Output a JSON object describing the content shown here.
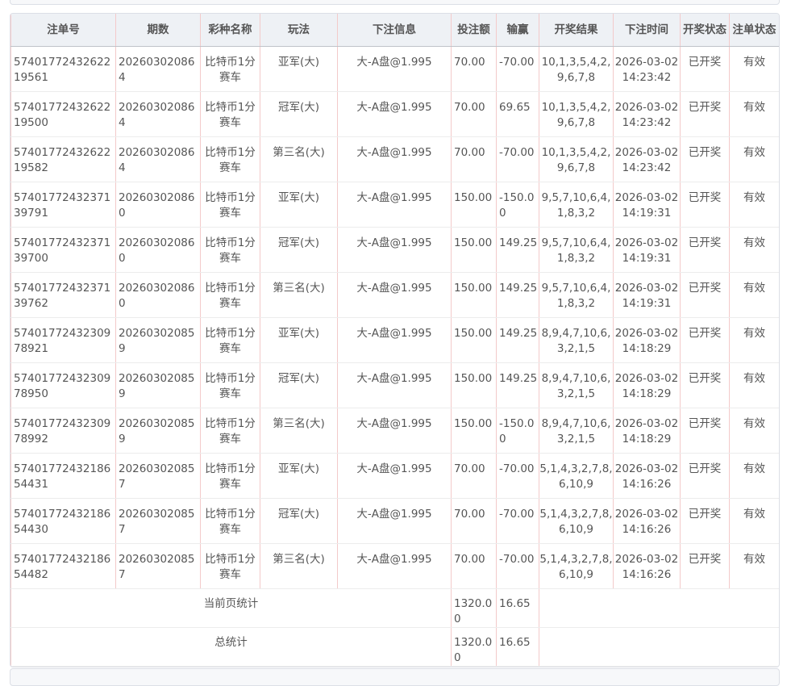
{
  "columns": [
    "注单号",
    "期数",
    "彩种名称",
    "玩法",
    "下注信息",
    "投注额",
    "输赢",
    "开奖结果",
    "下注时间",
    "开奖状态",
    "注单状态"
  ],
  "rows": [
    [
      "5740177243262219561",
      "202603020864",
      "比特币1分赛车",
      "亚军(大)",
      "大-A盘@1.995",
      "70.00",
      "-70.00",
      "10,1,3,5,4,2,9,6,7,8",
      "2026-03-02 14:23:42",
      "已开奖",
      "有效"
    ],
    [
      "5740177243262219500",
      "202603020864",
      "比特币1分赛车",
      "冠军(大)",
      "大-A盘@1.995",
      "70.00",
      "69.65",
      "10,1,3,5,4,2,9,6,7,8",
      "2026-03-02 14:23:42",
      "已开奖",
      "有效"
    ],
    [
      "5740177243262219582",
      "202603020864",
      "比特币1分赛车",
      "第三名(大)",
      "大-A盘@1.995",
      "70.00",
      "-70.00",
      "10,1,3,5,4,2,9,6,7,8",
      "2026-03-02 14:23:42",
      "已开奖",
      "有效"
    ],
    [
      "5740177243237139791",
      "202603020860",
      "比特币1分赛车",
      "亚军(大)",
      "大-A盘@1.995",
      "150.00",
      "-150.00",
      "9,5,7,10,6,4,1,8,3,2",
      "2026-03-02 14:19:31",
      "已开奖",
      "有效"
    ],
    [
      "5740177243237139700",
      "202603020860",
      "比特币1分赛车",
      "冠军(大)",
      "大-A盘@1.995",
      "150.00",
      "149.25",
      "9,5,7,10,6,4,1,8,3,2",
      "2026-03-02 14:19:31",
      "已开奖",
      "有效"
    ],
    [
      "5740177243237139762",
      "202603020860",
      "比特币1分赛车",
      "第三名(大)",
      "大-A盘@1.995",
      "150.00",
      "149.25",
      "9,5,7,10,6,4,1,8,3,2",
      "2026-03-02 14:19:31",
      "已开奖",
      "有效"
    ],
    [
      "5740177243230978921",
      "202603020859",
      "比特币1分赛车",
      "亚军(大)",
      "大-A盘@1.995",
      "150.00",
      "149.25",
      "8,9,4,7,10,6,3,2,1,5",
      "2026-03-02 14:18:29",
      "已开奖",
      "有效"
    ],
    [
      "5740177243230978950",
      "202603020859",
      "比特币1分赛车",
      "冠军(大)",
      "大-A盘@1.995",
      "150.00",
      "149.25",
      "8,9,4,7,10,6,3,2,1,5",
      "2026-03-02 14:18:29",
      "已开奖",
      "有效"
    ],
    [
      "5740177243230978992",
      "202603020859",
      "比特币1分赛车",
      "第三名(大)",
      "大-A盘@1.995",
      "150.00",
      "-150.00",
      "8,9,4,7,10,6,3,2,1,5",
      "2026-03-02 14:18:29",
      "已开奖",
      "有效"
    ],
    [
      "5740177243218654431",
      "202603020857",
      "比特币1分赛车",
      "亚军(大)",
      "大-A盘@1.995",
      "70.00",
      "-70.00",
      "5,1,4,3,2,7,8,6,10,9",
      "2026-03-02 14:16:26",
      "已开奖",
      "有效"
    ],
    [
      "5740177243218654430",
      "202603020857",
      "比特币1分赛车",
      "冠军(大)",
      "大-A盘@1.995",
      "70.00",
      "-70.00",
      "5,1,4,3,2,7,8,6,10,9",
      "2026-03-02 14:16:26",
      "已开奖",
      "有效"
    ],
    [
      "5740177243218654482",
      "202603020857",
      "比特币1分赛车",
      "第三名(大)",
      "大-A盘@1.995",
      "70.00",
      "-70.00",
      "5,1,4,3,2,7,8,6,10,9",
      "2026-03-02 14:16:26",
      "已开奖",
      "有效"
    ]
  ],
  "summary": [
    {
      "label": "当前页统计",
      "amount": "1320.00",
      "winloss": "16.65"
    },
    {
      "label": "总统计",
      "amount": "1320.00",
      "winloss": "16.65"
    }
  ]
}
